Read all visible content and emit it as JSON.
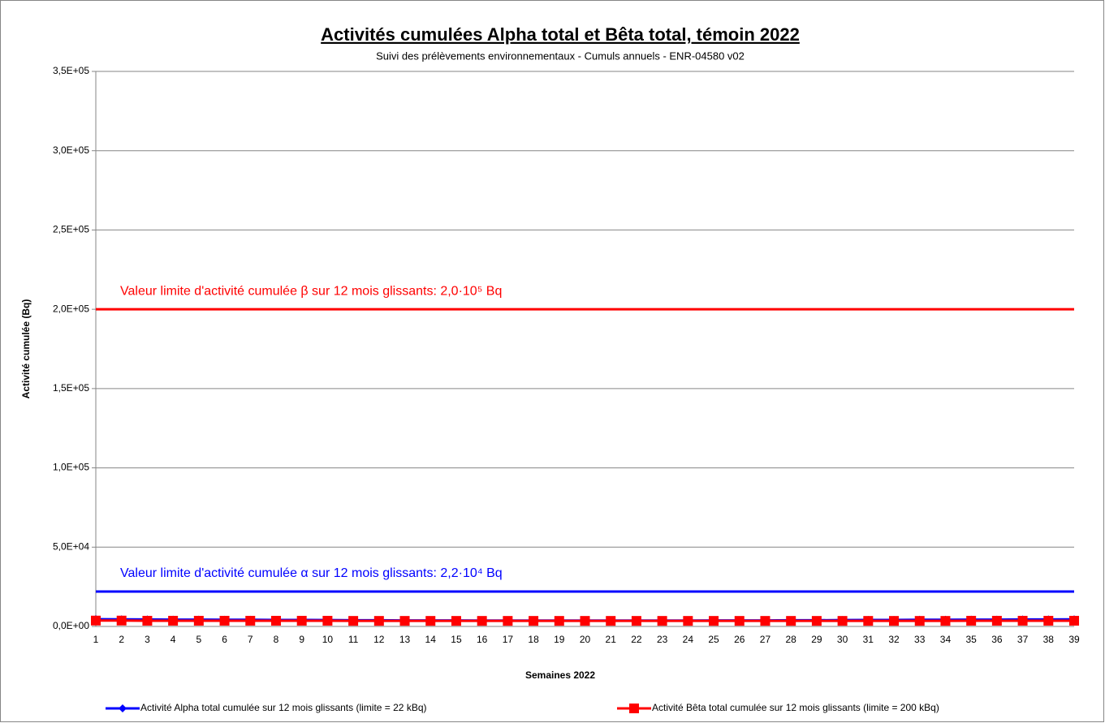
{
  "chart_data": {
    "type": "line",
    "title": "Activités cumulées Alpha total et Bêta total, témoin 2022",
    "subtitle": "Suivi des prélèvements environnementaux - Cumuls annuels - ENR-04580 v02",
    "x_label": "Semaines 2022",
    "y_label": "Activité cumulée (Bq)",
    "categories": [
      "1",
      "2",
      "3",
      "4",
      "5",
      "6",
      "7",
      "8",
      "9",
      "10",
      "11",
      "12",
      "13",
      "14",
      "15",
      "16",
      "17",
      "18",
      "19",
      "20",
      "21",
      "22",
      "23",
      "24",
      "25",
      "26",
      "27",
      "28",
      "29",
      "30",
      "31",
      "32",
      "33",
      "34",
      "35",
      "36",
      "37",
      "38",
      "39"
    ],
    "series": [
      {
        "name": "Activité Alpha total cumulée sur 12 mois glissants (limite = 22 kBq)",
        "color": "#0000ff",
        "marker": "diamond",
        "values": [
          4600,
          4500,
          4400,
          4300,
          4300,
          4200,
          4200,
          4100,
          4100,
          4000,
          3900,
          3900,
          3800,
          3800,
          3800,
          3700,
          3700,
          3700,
          3700,
          3700,
          3700,
          3700,
          3700,
          3700,
          3800,
          3800,
          3800,
          3900,
          3900,
          4000,
          4100,
          4100,
          4200,
          4200,
          4300,
          4300,
          4400,
          4400,
          4500
        ]
      },
      {
        "name": "Activité Bêta total cumulée sur 12 mois glissants (limite = 200 kBq)",
        "color": "#ff0000",
        "marker": "square",
        "values": [
          3700,
          3700,
          3600,
          3600,
          3600,
          3600,
          3600,
          3600,
          3600,
          3600,
          3500,
          3500,
          3500,
          3500,
          3500,
          3500,
          3500,
          3500,
          3500,
          3500,
          3500,
          3500,
          3500,
          3500,
          3500,
          3500,
          3500,
          3500,
          3500,
          3500,
          3500,
          3500,
          3500,
          3500,
          3600,
          3600,
          3600,
          3600,
          3600
        ]
      }
    ],
    "reference_lines": [
      {
        "value": 200000,
        "color": "#ff0000",
        "label": "Valeur limite d'activité cumulée β sur 12 mois glissants: 2,0·10⁵ Bq"
      },
      {
        "value": 22000,
        "color": "#0000ff",
        "label": "Valeur limite d'activité cumulée α sur 12 mois glissants: 2,2·10⁴ Bq"
      }
    ],
    "ylim": [
      0,
      350000
    ],
    "yticks": [
      {
        "value": 0,
        "label": "0,0E+00"
      },
      {
        "value": 50000,
        "label": "5,0E+04"
      },
      {
        "value": 100000,
        "label": "1,0E+05"
      },
      {
        "value": 150000,
        "label": "1,5E+05"
      },
      {
        "value": 200000,
        "label": "2,0E+05"
      },
      {
        "value": 250000,
        "label": "2,5E+05"
      },
      {
        "value": 300000,
        "label": "3,0E+05"
      },
      {
        "value": 350000,
        "label": "3,5E+05"
      }
    ],
    "grid": true,
    "legend": "bottom"
  }
}
